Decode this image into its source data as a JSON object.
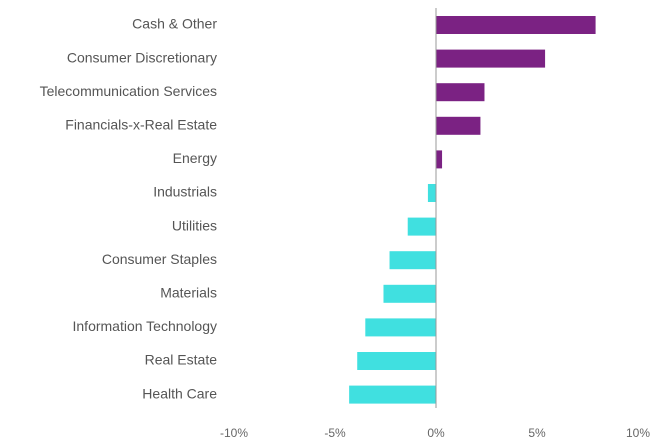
{
  "chart_data": {
    "type": "barh",
    "categories": [
      "Cash & Other",
      "Consumer Discretionary",
      "Telecommunication Services",
      "Financials-x-Real Estate",
      "Energy",
      "Industrials",
      "Utilities",
      "Consumer Staples",
      "Materials",
      "Information Technology",
      "Real Estate",
      "Health Care"
    ],
    "values": [
      7.9,
      5.4,
      2.4,
      2.2,
      0.3,
      -0.4,
      -1.4,
      -2.3,
      -2.6,
      -3.5,
      -3.9,
      -4.3
    ],
    "positive_color": "#7b2283",
    "negative_color": "#40e0e0",
    "xlim": [
      -10,
      10
    ],
    "xticks": [
      {
        "value": -10,
        "label": "-10%"
      },
      {
        "value": -5,
        "label": "-5%"
      },
      {
        "value": 0,
        "label": "0%"
      },
      {
        "value": 5,
        "label": "5%"
      },
      {
        "value": 10,
        "label": "10%"
      }
    ],
    "grid": false
  }
}
